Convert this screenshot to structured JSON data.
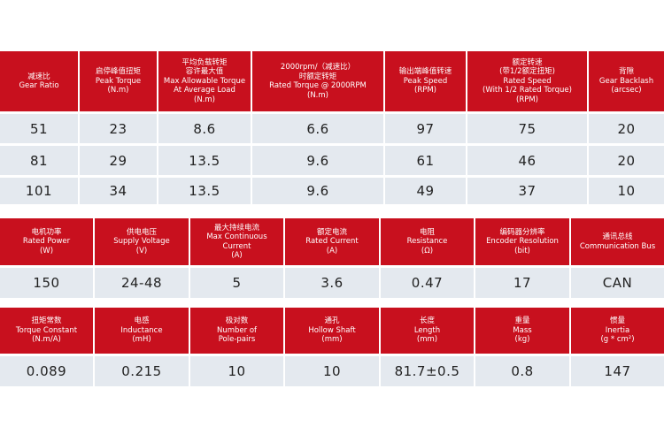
{
  "tables": [
    {
      "headers": [
        [
          "减速比",
          "Gear Ratio"
        ],
        [
          "启停峰值扭矩",
          "Peak Torque",
          "(N.m)"
        ],
        [
          "平均负载转矩",
          "容许最大值",
          "Max Allowable Torque",
          "At Average Load",
          "(N.m)"
        ],
        [
          "2000rpm/（减速比）",
          "时额定转矩",
          "Rated Torque @ 2000RPM",
          "(N.m)"
        ],
        [
          "输出端峰值转速",
          "Peak Speed",
          "(RPM)"
        ],
        [
          "额定转速",
          "(带1/2额定扭矩)",
          "Rated Speed",
          "(With 1/2 Rated Torque)",
          "(RPM)"
        ],
        [
          "背隙",
          "Gear Backlash",
          "(arcsec)"
        ]
      ],
      "rows": [
        [
          "51",
          "23",
          "8.6",
          "6.6",
          "97",
          "75",
          "20"
        ],
        [
          "81",
          "29",
          "13.5",
          "9.6",
          "61",
          "46",
          "20"
        ],
        [
          "101",
          "34",
          "13.5",
          "9.6",
          "49",
          "37",
          "10"
        ]
      ]
    },
    {
      "headers": [
        [
          "电机功率",
          "Rated Power",
          "(W)"
        ],
        [
          "供电电压",
          "Supply Voltage",
          "(V)"
        ],
        [
          "最大持续电流",
          "Max Continuous",
          "Current",
          "(A)"
        ],
        [
          "额定电流",
          "Rated Current",
          "(A)"
        ],
        [
          "电阻",
          "Resistance",
          "(Ω)"
        ],
        [
          "编码器分辨率",
          "Encoder Resolution",
          "(bit)"
        ],
        [
          "通讯总线",
          "Communication Bus"
        ]
      ],
      "rows": [
        [
          "150",
          "24-48",
          "5",
          "3.6",
          "0.47",
          "17",
          "CAN"
        ]
      ]
    },
    {
      "headers": [
        [
          "扭矩常数",
          "Torque Constant",
          "(N.m/A)"
        ],
        [
          "电感",
          "Inductance",
          "(mH)"
        ],
        [
          "极对数",
          "Number of",
          "Pole-pairs"
        ],
        [
          "通孔",
          "Hollow Shaft",
          "(mm)"
        ],
        [
          "长度",
          "Length",
          "(mm)"
        ],
        [
          "重量",
          "Mass",
          "(kg)"
        ],
        [
          "惯量",
          "Inertia",
          "(g * cm²)"
        ]
      ],
      "rows": [
        [
          "0.089",
          "0.215",
          "10",
          "10",
          "81.7±0.5",
          "0.8",
          "147"
        ]
      ]
    }
  ]
}
